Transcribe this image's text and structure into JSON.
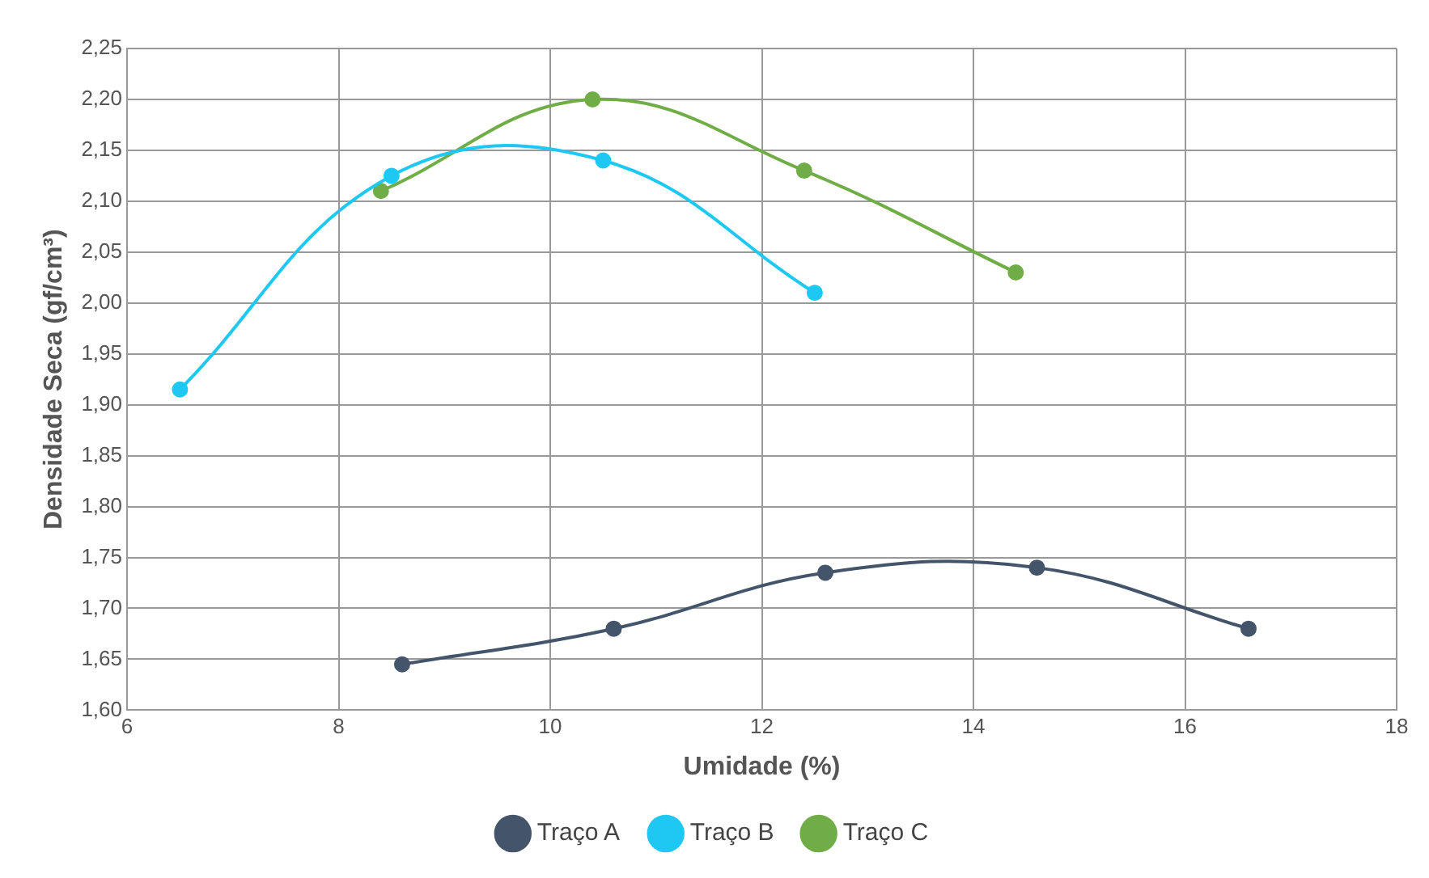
{
  "chart_data": {
    "type": "line",
    "xlabel": "Umidade (%)",
    "ylabel": "Densidade Seca (gf/cm³)",
    "series": [
      {
        "name": "Traço A",
        "color": "#44546a",
        "x": [
          8.6,
          10.6,
          12.6,
          14.6,
          16.6
        ],
        "values": [
          1.645,
          1.68,
          1.735,
          1.74,
          1.68
        ]
      },
      {
        "name": "Traço B",
        "color": "#1ec8f2",
        "x": [
          6.5,
          8.5,
          10.5,
          12.5
        ],
        "values": [
          1.915,
          2.125,
          2.14,
          2.01
        ]
      },
      {
        "name": "Traço C",
        "color": "#70ad47",
        "x": [
          8.4,
          10.4,
          12.4,
          14.4
        ],
        "values": [
          2.11,
          2.2,
          2.13,
          2.03
        ]
      }
    ],
    "xlim": [
      6,
      18
    ],
    "xticks": [
      6,
      8,
      10,
      12,
      14,
      16,
      18
    ],
    "ylim": [
      1.6,
      2.25
    ],
    "yticks": [
      {
        "value": 1.6,
        "label": "1,60"
      },
      {
        "value": 1.65,
        "label": "1,65"
      },
      {
        "value": 1.7,
        "label": "1,70"
      },
      {
        "value": 1.75,
        "label": "1,75"
      },
      {
        "value": 1.8,
        "label": "1,80"
      },
      {
        "value": 1.85,
        "label": "1,85"
      },
      {
        "value": 1.9,
        "label": "1,90"
      },
      {
        "value": 1.95,
        "label": "1,95"
      },
      {
        "value": 2.0,
        "label": "2,00"
      },
      {
        "value": 2.05,
        "label": "2,05"
      },
      {
        "value": 2.1,
        "label": "2,10"
      },
      {
        "value": 2.15,
        "label": "2,15"
      },
      {
        "value": 2.2,
        "label": "2,20"
      },
      {
        "value": 2.25,
        "label": "2,25"
      }
    ],
    "grid": true,
    "legend": "bottom",
    "marker": "circle",
    "line_style": "solid"
  }
}
